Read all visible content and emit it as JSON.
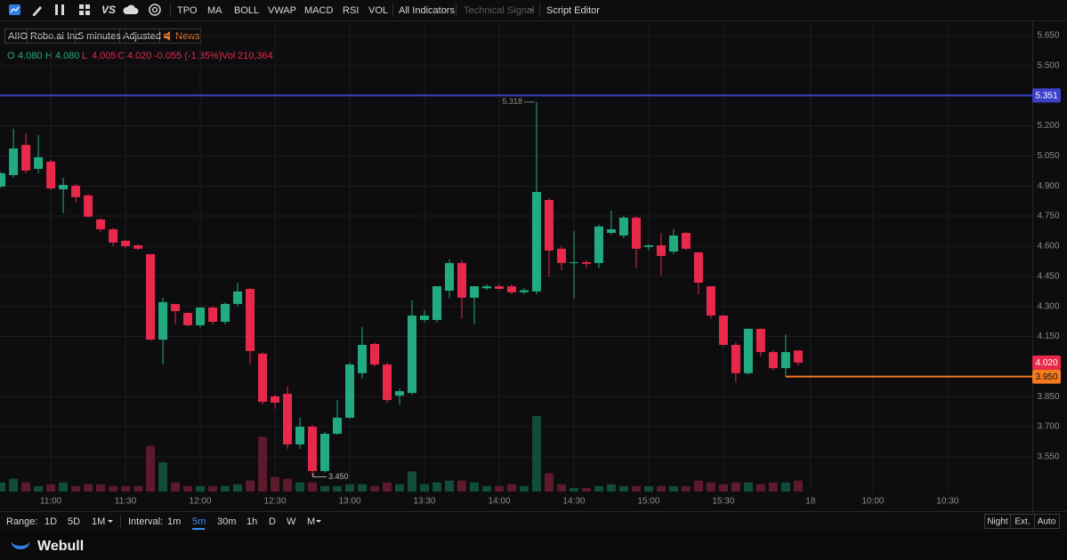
{
  "toolbar": {
    "items": [
      "TPO",
      "MA",
      "BOLL",
      "VWAP",
      "MACD",
      "RSI",
      "VOL",
      "All Indicators",
      "Technical Signal",
      "Script Editor"
    ]
  },
  "symbol_bar": {
    "ticker": "AIIO",
    "name": "Robo.ai Inc",
    "interval": "5 minutes",
    "adjust": "Adjusted",
    "news": "News"
  },
  "quote": {
    "o_label": "O",
    "open": "4.080",
    "h_label": "H",
    "high": "4.080",
    "l_label": "L",
    "low": "4.005",
    "c_label": "C",
    "close": "4.020",
    "change": "-0.055 (-1.35%)",
    "vol_label": "Vol",
    "volume": "210,364"
  },
  "chart_data": {
    "type": "candlestick",
    "up_color": "#22ab80",
    "down_color": "#e8294b",
    "up_volume_color": "#124c3a",
    "down_volume_color": "#5c1a2b",
    "grid": true,
    "x": [
      "10:40",
      "10:45",
      "10:50",
      "10:55",
      "11:00",
      "11:05",
      "11:10",
      "11:15",
      "11:20",
      "11:25",
      "11:30",
      "11:35",
      "11:40",
      "11:45",
      "11:50",
      "11:55",
      "12:00",
      "12:05",
      "12:10",
      "12:15",
      "12:20",
      "12:25",
      "12:30",
      "12:35",
      "12:40",
      "12:45",
      "12:50",
      "12:55",
      "13:00",
      "13:05",
      "13:10",
      "13:15",
      "13:20",
      "13:25",
      "13:30",
      "13:35",
      "13:40",
      "13:45",
      "13:50",
      "13:55",
      "14:00",
      "14:05",
      "14:10",
      "14:15",
      "14:20",
      "14:25",
      "14:30",
      "14:35",
      "14:40",
      "14:45",
      "14:50",
      "14:55",
      "15:00",
      "15:05",
      "15:10",
      "15:15",
      "15:20",
      "15:25",
      "15:30",
      "15:35",
      "15:40",
      "15:45",
      "15:50",
      "15:55",
      "16:00"
    ],
    "open": [
      4.897,
      4.954,
      5.105,
      4.985,
      5.021,
      4.883,
      4.901,
      4.853,
      4.733,
      4.684,
      4.627,
      4.604,
      4.56,
      4.134,
      4.312,
      4.267,
      4.206,
      4.294,
      4.223,
      4.312,
      4.387,
      4.064,
      3.851,
      3.864,
      3.612,
      3.7,
      3.479,
      3.665,
      3.745,
      3.967,
      4.112,
      4.01,
      3.855,
      3.868,
      4.232,
      4.232,
      4.378,
      4.516,
      4.343,
      4.39,
      4.4,
      4.4,
      4.37,
      4.374,
      4.83,
      4.587,
      4.516,
      4.52,
      4.516,
      4.666,
      4.653,
      4.742,
      4.596,
      4.604,
      4.573,
      4.666,
      4.569,
      4.4,
      4.254,
      4.108,
      3.967,
      4.188,
      4.072,
      3.992,
      4.08
    ],
    "high": [
      4.97,
      5.185,
      5.163,
      5.154,
      5.03,
      4.94,
      4.91,
      4.86,
      4.74,
      4.69,
      4.63,
      4.61,
      4.56,
      4.343,
      4.31,
      4.27,
      4.294,
      4.3,
      4.32,
      4.418,
      4.39,
      4.07,
      3.86,
      3.9,
      3.745,
      3.71,
      3.674,
      3.833,
      4.02,
      4.197,
      4.12,
      4.02,
      3.89,
      4.33,
      4.28,
      4.4,
      4.534,
      4.53,
      4.4,
      4.41,
      4.41,
      4.41,
      4.39,
      5.318,
      4.84,
      4.6,
      4.675,
      4.53,
      4.707,
      4.777,
      4.751,
      4.75,
      4.61,
      4.666,
      4.684,
      4.67,
      4.57,
      4.4,
      4.26,
      4.12,
      4.19,
      4.19,
      4.08,
      4.16,
      4.08
    ],
    "low": [
      4.89,
      4.941,
      4.963,
      4.963,
      4.88,
      4.764,
      4.817,
      4.74,
      4.67,
      4.6,
      4.59,
      4.58,
      4.13,
      4.01,
      4.21,
      4.2,
      4.196,
      4.21,
      4.21,
      4.3,
      4.01,
      3.81,
      3.79,
      3.59,
      3.59,
      3.45,
      3.47,
      3.66,
      3.74,
      3.94,
      4.0,
      3.82,
      3.81,
      3.86,
      4.22,
      4.22,
      4.34,
      4.24,
      4.21,
      4.38,
      4.38,
      4.36,
      4.36,
      4.36,
      4.45,
      4.48,
      4.34,
      4.49,
      4.49,
      4.657,
      4.64,
      4.49,
      4.58,
      4.454,
      4.56,
      4.58,
      4.36,
      4.24,
      4.1,
      3.92,
      3.96,
      4.05,
      3.98,
      3.95,
      4.005
    ],
    "close": [
      4.963,
      5.087,
      4.977,
      5.043,
      4.888,
      4.905,
      4.844,
      4.747,
      4.684,
      4.618,
      4.6,
      4.587,
      4.134,
      4.321,
      4.276,
      4.206,
      4.294,
      4.223,
      4.312,
      4.374,
      4.077,
      3.824,
      3.82,
      3.612,
      3.7,
      3.479,
      3.665,
      3.745,
      4.01,
      4.108,
      4.01,
      3.833,
      3.877,
      4.254,
      4.254,
      4.4,
      4.516,
      4.343,
      4.4,
      4.4,
      4.387,
      4.37,
      4.38,
      4.87,
      4.578,
      4.516,
      4.52,
      4.512,
      4.698,
      4.684,
      4.742,
      4.587,
      4.604,
      4.551,
      4.653,
      4.587,
      4.418,
      4.254,
      4.108,
      3.967,
      4.188,
      4.072,
      3.992,
      4.072,
      4.02
    ],
    "volume": [
      175000,
      245000,
      175000,
      105000,
      140000,
      175000,
      105000,
      140000,
      140000,
      105000,
      105000,
      105000,
      875000,
      560000,
      175000,
      105000,
      105000,
      105000,
      105000,
      140000,
      210000,
      1050000,
      280000,
      245000,
      175000,
      175000,
      105000,
      105000,
      140000,
      140000,
      105000,
      175000,
      140000,
      385000,
      140000,
      175000,
      210000,
      210000,
      175000,
      105000,
      105000,
      140000,
      105000,
      1450000,
      350000,
      140000,
      70000,
      70000,
      105000,
      140000,
      105000,
      105000,
      105000,
      105000,
      105000,
      105000,
      210000,
      175000,
      140000,
      175000,
      175000,
      140000,
      175000,
      175000,
      210364
    ],
    "volume_ylim": [
      0,
      1500000
    ],
    "ylim": [
      3.368,
      5.716
    ],
    "yticks": [
      {
        "value": 5.65,
        "label": "5.650"
      },
      {
        "value": 5.5,
        "label": "5.500"
      },
      {
        "value": 5.2,
        "label": "5.200"
      },
      {
        "value": 5.05,
        "label": "5.050"
      },
      {
        "value": 4.9,
        "label": "4.900"
      },
      {
        "value": 4.75,
        "label": "4.750"
      },
      {
        "value": 4.6,
        "label": "4.600"
      },
      {
        "value": 4.45,
        "label": "4.450"
      },
      {
        "value": 4.3,
        "label": "4.300"
      },
      {
        "value": 4.15,
        "label": "4.150"
      },
      {
        "value": 3.85,
        "label": "3.850"
      },
      {
        "value": 3.7,
        "label": "3.700"
      },
      {
        "value": 3.55,
        "label": "3.550"
      }
    ],
    "xlim": [
      639.6,
      1054
    ],
    "xticks": [
      {
        "value": 660,
        "label": "11:00"
      },
      {
        "value": 690,
        "label": "11:30"
      },
      {
        "value": 720,
        "label": "12:00"
      },
      {
        "value": 750,
        "label": "12:30"
      },
      {
        "value": 780,
        "label": "13:00"
      },
      {
        "value": 810,
        "label": "13:30"
      },
      {
        "value": 840,
        "label": "14:00"
      },
      {
        "value": 870,
        "label": "14:30"
      },
      {
        "value": 900,
        "label": "15:00"
      },
      {
        "value": 930,
        "label": "15:30"
      },
      {
        "value": 965,
        "label": "18"
      },
      {
        "value": 990,
        "label": "10:00"
      },
      {
        "value": 1020,
        "label": "10:30"
      }
    ],
    "price_lines": [
      {
        "value": 5.351,
        "label": "5.351",
        "color": "#3d40c9"
      },
      {
        "value": 3.95,
        "label": "3.950",
        "color": "#f47a20",
        "from": "15:55"
      }
    ],
    "current_price": {
      "value": 4.02,
      "label": "4.020",
      "color": "#e8294b"
    },
    "high_marker": {
      "x": "14:15",
      "value": 5.318,
      "label": "5.318"
    },
    "low_marker": {
      "x": "12:45",
      "value": 3.45,
      "label": "3.450"
    }
  },
  "range_bar": {
    "range_label": "Range:",
    "ranges": [
      "1D",
      "5D",
      "1M"
    ],
    "interval_label": "Interval:",
    "intervals": [
      "1m",
      "5m",
      "30m",
      "1h",
      "D",
      "W",
      "M"
    ],
    "active_interval": 1,
    "modes": [
      "Night",
      "Ext.",
      "Auto"
    ]
  },
  "footer": {
    "brand": "Webull"
  }
}
